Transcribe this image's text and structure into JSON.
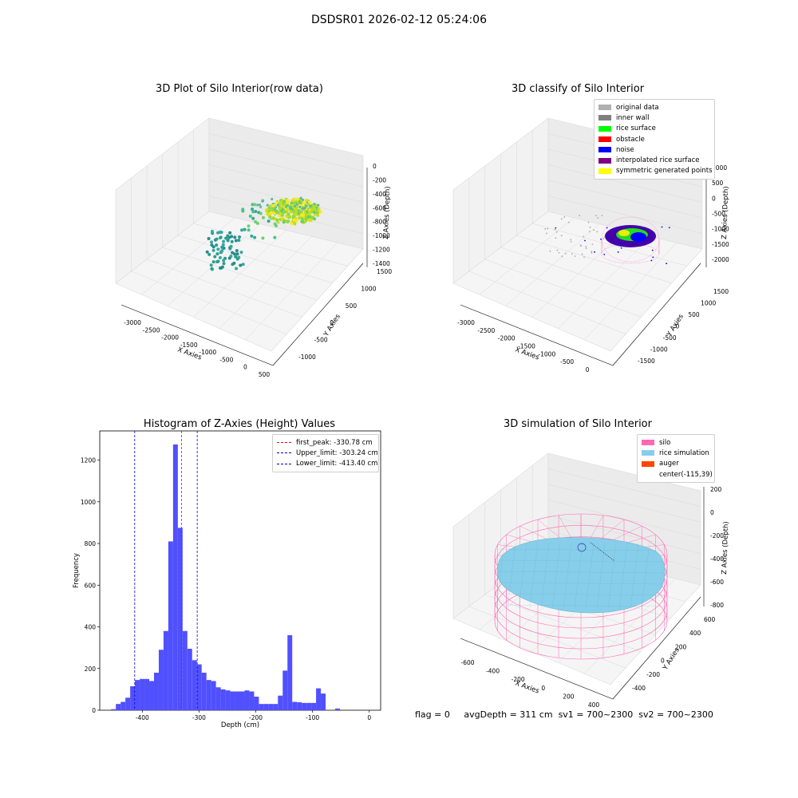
{
  "figure_title": "DSDSR01 2026-02-12 05:24:06",
  "footer": {
    "flag": "flag = 0",
    "avg_depth": "avgDepth = 311 cm",
    "sv1": "sv1 = 700~2300",
    "sv2": "sv2 = 700~2300"
  },
  "colors": {
    "histogram_bar": "#5050ff",
    "first_peak_line": "#ff0000",
    "limit_line": "#0000cc",
    "silo": "#ff69b4",
    "rice_simulation": "#87ceeb",
    "auger": "#ff4500"
  },
  "chart_data": [
    {
      "type": "scatter",
      "panel": "raw",
      "title": "3D Plot of Silo Interior(row data)",
      "xlabel": "X Axies",
      "ylabel": "Y Axies",
      "zlabel": "Z Axies (Depth)",
      "x_ticks": [
        "-3000",
        "-2500",
        "-2000",
        "-1500",
        "-1000",
        "-500",
        "0",
        "500"
      ],
      "y_ticks": [
        "-1000",
        "-500",
        "0",
        "500",
        "1000",
        "1500"
      ],
      "z_ticks": [
        "-1400",
        "-1200",
        "-1000",
        "-800",
        "-600",
        "-400",
        "-200",
        "0"
      ]
    },
    {
      "type": "scatter",
      "panel": "classify",
      "title": "3D classify of Silo Interior",
      "xlabel": "X Axies",
      "ylabel": "Y Axies",
      "zlabel": "Z Axies (Depth)",
      "x_ticks": [
        "-3000",
        "-2500",
        "-2000",
        "-1500",
        "-1000",
        "-500",
        "0"
      ],
      "y_ticks": [
        "-1500",
        "-1000",
        "-500",
        "0",
        "500",
        "1000",
        "1500"
      ],
      "z_ticks": [
        "-2000",
        "-1500",
        "-1000",
        "-500",
        "0",
        "500",
        "1000"
      ],
      "legend_position": "upper-right",
      "legend": [
        {
          "label": "original data",
          "color": "#b0b0b0"
        },
        {
          "label": "inner wall",
          "color": "#808080"
        },
        {
          "label": "rice surface",
          "color": "#00ff00"
        },
        {
          "label": "obstacle",
          "color": "#ff0000"
        },
        {
          "label": "noise",
          "color": "#0000ff"
        },
        {
          "label": "interpolated rice surface",
          "color": "#800080"
        },
        {
          "label": "symmetric generated points",
          "color": "#ffff00"
        }
      ]
    },
    {
      "type": "bar",
      "panel": "histogram",
      "title": "Histogram of Z-Axies (Height) Values",
      "xlabel": "Depth (cm)",
      "ylabel": "Frequency",
      "xlim": [
        -475,
        20
      ],
      "ylim": [
        0,
        1340
      ],
      "x_ticks": [
        -400,
        -300,
        -200,
        -100,
        0
      ],
      "y_ticks": [
        0,
        200,
        400,
        600,
        800,
        1000,
        1200
      ],
      "bin_start": -455,
      "bin_width": 8.4,
      "values": [
        5,
        30,
        40,
        60,
        115,
        145,
        150,
        150,
        140,
        180,
        290,
        380,
        810,
        1275,
        875,
        380,
        295,
        240,
        220,
        180,
        145,
        140,
        110,
        100,
        95,
        90,
        90,
        90,
        95,
        90,
        65,
        30,
        30,
        30,
        30,
        70,
        190,
        360,
        40,
        38,
        35,
        35,
        35,
        105,
        80,
        0,
        0,
        8
      ],
      "lines": [
        {
          "label": "first_peak: -330.78 cm",
          "value": -330.78,
          "color": "#ff0000"
        },
        {
          "label": "Upper_limit: -303.24 cm",
          "value": -303.24,
          "color": "#0000cc"
        },
        {
          "label": "Lower_limit: -413.40 cm",
          "value": -413.4,
          "color": "#0000cc"
        }
      ],
      "legend_position": "upper-right"
    },
    {
      "type": "scatter",
      "panel": "simulation",
      "title": "3D simulation of Silo Interior",
      "xlabel": "X Axies",
      "ylabel": "Y Axies",
      "zlabel": "Z Axies (Depth)",
      "x_ticks": [
        "-600",
        "-400",
        "-200",
        "0",
        "200",
        "400"
      ],
      "y_ticks": [
        "-400",
        "-200",
        "0",
        "200",
        "400",
        "600"
      ],
      "z_ticks": [
        "-800",
        "-600",
        "-400",
        "-200",
        "0",
        "200"
      ],
      "legend_position": "upper-right",
      "legend": [
        {
          "label": "silo",
          "color": "#ff69b4"
        },
        {
          "label": "rice simulation",
          "color": "#87ceeb"
        },
        {
          "label": "auger",
          "color": "#ff4500"
        },
        {
          "label": "center(-115,39)",
          "color": ""
        }
      ]
    }
  ]
}
